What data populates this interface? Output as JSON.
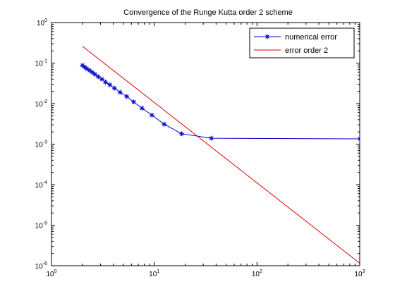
{
  "chart_data": {
    "type": "line",
    "title": "Convergence of the Runge Kutta order 2 scheme",
    "xlabel": "",
    "ylabel": "",
    "xscale": "log",
    "yscale": "log",
    "xlim": [
      1,
      1000
    ],
    "ylim": [
      1e-06,
      1
    ],
    "grid": false,
    "legend_position": "top-right",
    "x_ticks": [
      {
        "value": 1,
        "base": "10",
        "exp": "0"
      },
      {
        "value": 10,
        "base": "10",
        "exp": "1"
      },
      {
        "value": 100,
        "base": "10",
        "exp": "2"
      },
      {
        "value": 1000,
        "base": "10",
        "exp": "3"
      }
    ],
    "y_ticks": [
      {
        "value": 1e-06,
        "base": "10",
        "exp": "-6"
      },
      {
        "value": 1e-05,
        "base": "10",
        "exp": "-5"
      },
      {
        "value": 0.0001,
        "base": "10",
        "exp": "-4"
      },
      {
        "value": 0.001,
        "base": "10",
        "exp": "-3"
      },
      {
        "value": 0.01,
        "base": "10",
        "exp": "-2"
      },
      {
        "value": 0.1,
        "base": "10",
        "exp": "-1"
      },
      {
        "value": 1,
        "base": "10",
        "exp": "0"
      }
    ],
    "series": [
      {
        "name": "numerical error",
        "color": "#0000cc",
        "marker": "asterisk",
        "line": "solid",
        "points": [
          [
            2.0,
            0.088
          ],
          [
            2.1,
            0.08
          ],
          [
            2.2,
            0.073
          ],
          [
            2.35,
            0.066
          ],
          [
            2.5,
            0.059
          ],
          [
            2.65,
            0.053
          ],
          [
            2.85,
            0.046
          ],
          [
            3.1,
            0.04
          ],
          [
            3.35,
            0.034
          ],
          [
            3.7,
            0.029
          ],
          [
            4.1,
            0.024
          ],
          [
            4.65,
            0.019
          ],
          [
            5.4,
            0.015
          ],
          [
            6.3,
            0.011
          ],
          [
            7.6,
            0.0077
          ],
          [
            9.5,
            0.0052
          ],
          [
            12.5,
            0.0031
          ],
          [
            18.5,
            0.0018
          ],
          [
            36,
            0.0014
          ],
          [
            1000,
            0.00135
          ]
        ]
      },
      {
        "name": "error order 2",
        "color": "#dd0000",
        "marker": "none",
        "line": "solid",
        "points": [
          [
            2,
            0.26
          ],
          [
            1000,
            1.15e-06
          ]
        ]
      }
    ]
  }
}
